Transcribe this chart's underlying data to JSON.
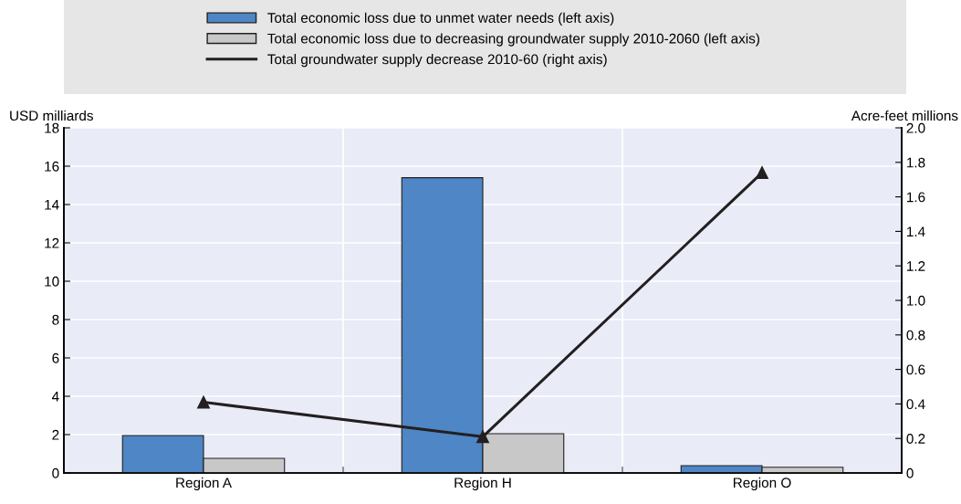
{
  "chart_data": {
    "type": "bar",
    "categories": [
      "Region A",
      "Region H",
      "Region O"
    ],
    "ylabel": "USD milliards",
    "y2label": "Acre-feet millions",
    "series": [
      {
        "name": "Total economic loss due to unmet water needs (left axis)",
        "color": "#4e86c6",
        "values": [
          1.95,
          15.4,
          0.38
        ]
      },
      {
        "name": "Total economic loss due to decreasing groundwater supply 2010-2060 (left axis)",
        "color": "#c8c8c8",
        "values": [
          0.76,
          2.05,
          0.3
        ]
      },
      {
        "name": "Total groundwater supply decrease 2010-60 (right axis)",
        "type": "line",
        "axis": "y2",
        "color": "#231f20",
        "marker": "triangle",
        "values": [
          0.41,
          0.21,
          1.74
        ]
      }
    ],
    "ylim": [
      0,
      18
    ],
    "yticks": [
      0,
      2,
      4,
      6,
      8,
      10,
      12,
      14,
      16,
      18
    ],
    "y2lim": [
      0,
      2.0
    ],
    "y2ticks": [
      {
        "value": 0,
        "label": "0"
      },
      {
        "value": 0.2,
        "label": "0.2"
      },
      {
        "value": 0.4,
        "label": "0.4"
      },
      {
        "value": 0.6,
        "label": "0.6"
      },
      {
        "value": 0.8,
        "label": "0.8"
      },
      {
        "value": 1.0,
        "label": "1.0"
      },
      {
        "value": 1.2,
        "label": "1.2"
      },
      {
        "value": 1.4,
        "label": "1.4"
      },
      {
        "value": 1.6,
        "label": "1.6"
      },
      {
        "value": 1.8,
        "label": "1.8"
      },
      {
        "value": 2.0,
        "label": "2.0"
      }
    ],
    "grid": true,
    "legend": "top"
  }
}
